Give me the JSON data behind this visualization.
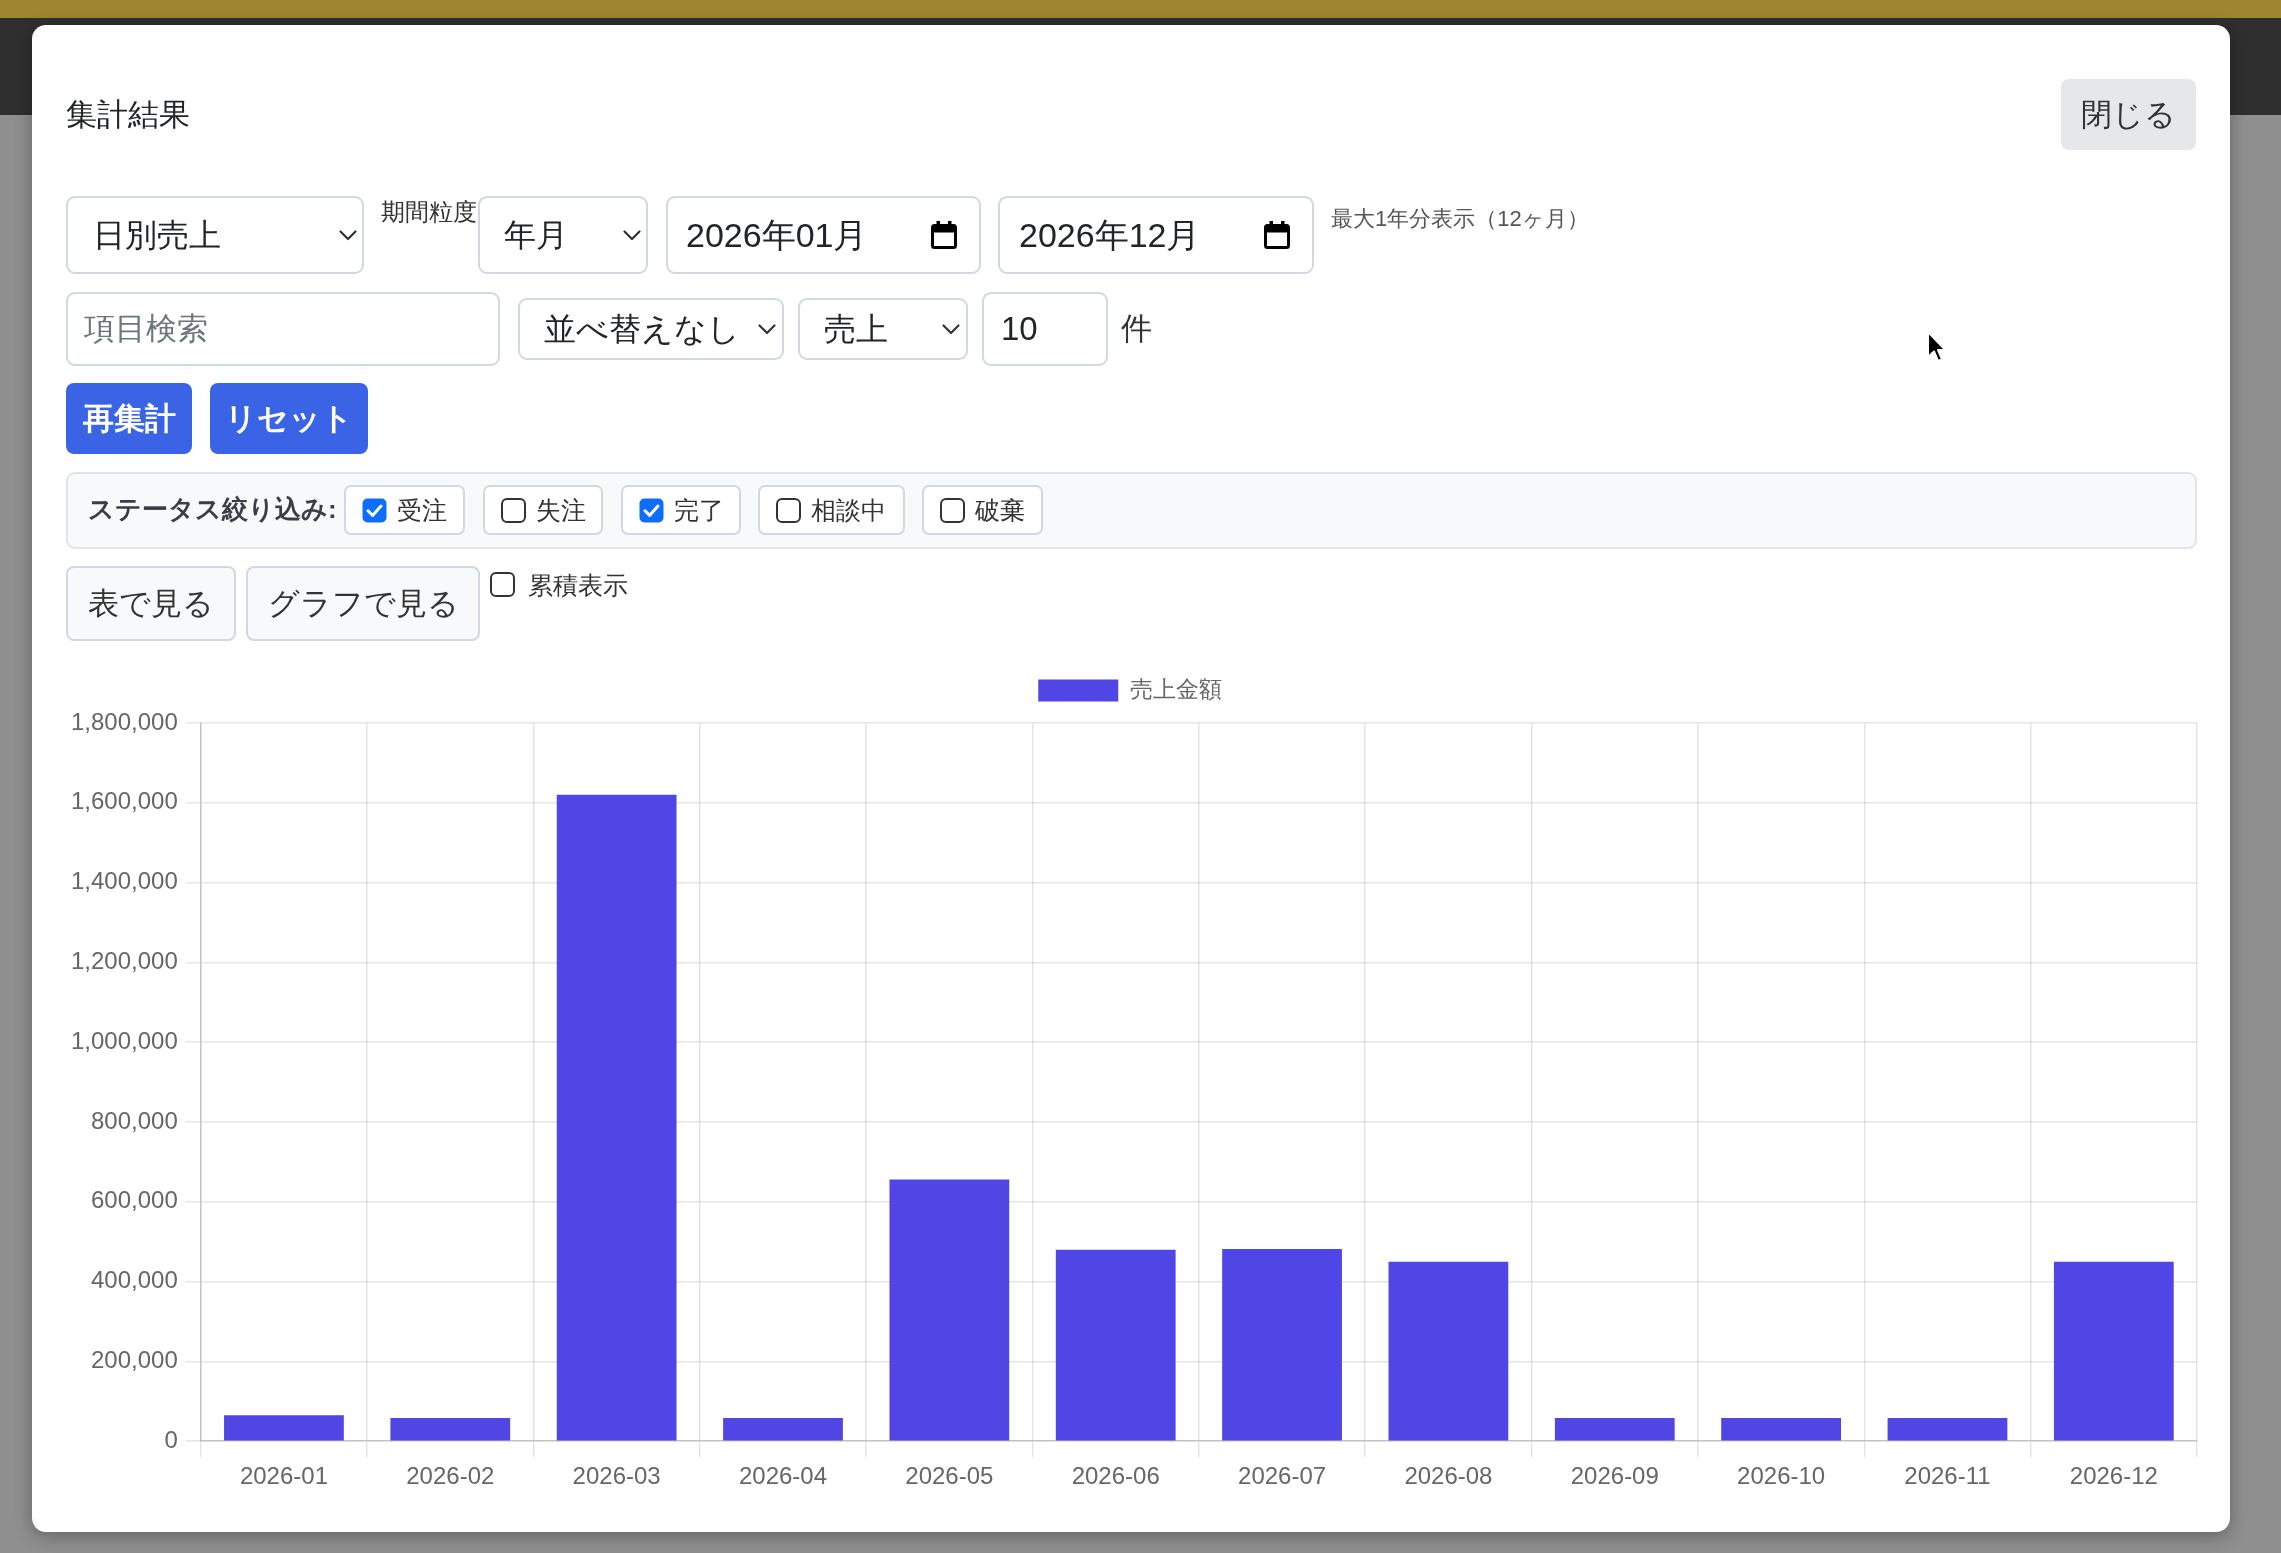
{
  "chart_data": {
    "type": "bar",
    "title": "集計結果",
    "categories": [
      "2026-01",
      "2026-02",
      "2026-03",
      "2026-04",
      "2026-05",
      "2026-06",
      "2026-07",
      "2026-08",
      "2026-09",
      "2026-10",
      "2026-11",
      "2026-12"
    ],
    "series": [
      {
        "name": "売上金額",
        "color": "#4f46e5",
        "values": [
          65000,
          58000,
          1620000,
          58000,
          656000,
          480000,
          482000,
          450000,
          58000,
          58000,
          58000,
          450000
        ]
      }
    ],
    "ylim": [
      0,
      1800000
    ],
    "yticks": [
      {
        "value": 0,
        "label": "0"
      },
      {
        "value": 200000,
        "label": "200,000"
      },
      {
        "value": 400000,
        "label": "400,000"
      },
      {
        "value": 600000,
        "label": "600,000"
      },
      {
        "value": 800000,
        "label": "800,000"
      },
      {
        "value": 1000000,
        "label": "1,000,000"
      },
      {
        "value": 1200000,
        "label": "1,200,000"
      },
      {
        "value": 1400000,
        "label": "1,400,000"
      },
      {
        "value": 1600000,
        "label": "1,600,000"
      },
      {
        "value": 1800000,
        "label": "1,800,000"
      }
    ],
    "grid": true,
    "legend": "top",
    "annotations": [
      "日別売上",
      "期間粒度",
      "年月",
      "2026年01月",
      "2026年12月",
      "最大1年分表示（12ヶ月）",
      "項目検索",
      "並べ替えなし",
      "売上",
      "10",
      "件",
      "再集計",
      "リセット",
      "ステータス絞り込み:",
      "受注",
      "失注",
      "完了",
      "相談中",
      "破棄",
      "表で見る",
      "グラフで見る",
      "累積表示",
      "閉じる"
    ]
  }
}
